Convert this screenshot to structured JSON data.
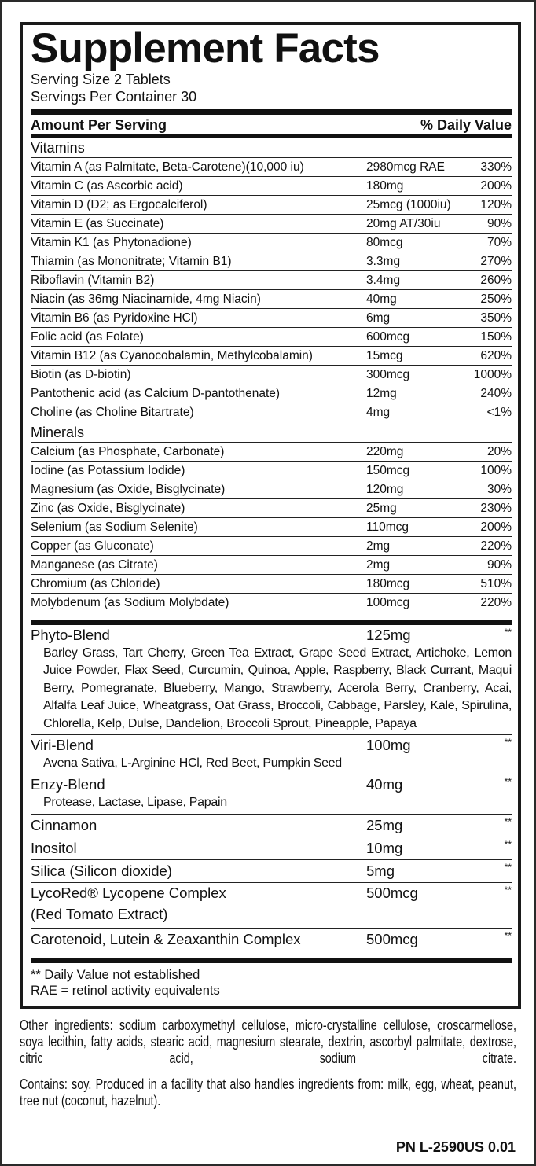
{
  "title": "Supplement Facts",
  "serving_size": "Serving Size 2 Tablets",
  "servings_per_container": "Servings Per Container 30",
  "header": {
    "amount": "Amount Per Serving",
    "dv": "% Daily Value"
  },
  "vitamins": {
    "label": "Vitamins",
    "rows": [
      {
        "name": "Vitamin A (as Palmitate, Beta-Carotene)(10,000 iu)",
        "amount": "2980mcg RAE",
        "dv": "330%"
      },
      {
        "name": "Vitamin C (as Ascorbic acid)",
        "amount": "180mg",
        "dv": "200%"
      },
      {
        "name": "Vitamin D (D2; as Ergocalciferol)",
        "amount": "25mcg (1000iu)",
        "dv": "120%"
      },
      {
        "name": "Vitamin E (as Succinate)",
        "amount": "20mg AT/30iu",
        "dv": "90%"
      },
      {
        "name": "Vitamin K1 (as Phytonadione)",
        "amount": "80mcg",
        "dv": "70%"
      },
      {
        "name": "Thiamin (as Mononitrate; Vitamin B1)",
        "amount": "3.3mg",
        "dv": "270%"
      },
      {
        "name": "Riboflavin (Vitamin B2)",
        "amount": "3.4mg",
        "dv": "260%"
      },
      {
        "name": "Niacin (as 36mg Niacinamide, 4mg Niacin)",
        "amount": "40mg",
        "dv": "250%"
      },
      {
        "name": "Vitamin B6 (as Pyridoxine HCl)",
        "amount": "6mg",
        "dv": "350%"
      },
      {
        "name": "Folic acid (as Folate)",
        "amount": "600mcg",
        "dv": "150%"
      },
      {
        "name": "Vitamin B12 (as Cyanocobalamin, Methylcobalamin)",
        "amount": "15mcg",
        "dv": "620%"
      },
      {
        "name": "Biotin (as D-biotin)",
        "amount": "300mcg",
        "dv": "1000%"
      },
      {
        "name": "Pantothenic acid (as Calcium D-pantothenate)",
        "amount": "12mg",
        "dv": "240%"
      },
      {
        "name": "Choline (as Choline Bitartrate)",
        "amount": "4mg",
        "dv": "<1%"
      }
    ]
  },
  "minerals": {
    "label": "Minerals",
    "rows": [
      {
        "name": "Calcium (as Phosphate, Carbonate)",
        "amount": "220mg",
        "dv": "20%"
      },
      {
        "name": "Iodine (as Potassium Iodide)",
        "amount": "150mcg",
        "dv": "100%"
      },
      {
        "name": "Magnesium (as Oxide, Bisglycinate)",
        "amount": "120mg",
        "dv": "30%"
      },
      {
        "name": "Zinc (as Oxide, Bisglycinate)",
        "amount": "25mg",
        "dv": "230%"
      },
      {
        "name": "Selenium (as Sodium Selenite)",
        "amount": "110mcg",
        "dv": "200%"
      },
      {
        "name": "Copper (as Gluconate)",
        "amount": "2mg",
        "dv": "220%"
      },
      {
        "name": "Manganese (as Citrate)",
        "amount": "2mg",
        "dv": "90%"
      },
      {
        "name": "Chromium (as Chloride)",
        "amount": "180mcg",
        "dv": "510%"
      },
      {
        "name": "Molybdenum (as Sodium Molybdate)",
        "amount": "100mcg",
        "dv": "220%"
      }
    ]
  },
  "blends": [
    {
      "name": "Phyto-Blend",
      "amount": "125mg",
      "dv": "**",
      "sub": "Barley Grass, Tart Cherry, Green Tea Extract, Grape Seed Extract, Artichoke, Lemon Juice Powder, Flax Seed, Curcumin, Quinoa, Apple, Raspberry, Black Currant, Maqui Berry, Pomegranate, Blueberry, Mango, Strawberry, Acerola Berry, Cranberry, Acai, Alfalfa Leaf Juice, Wheatgrass, Oat Grass, Broccoli, Cabbage, Parsley, Kale, Spirulina, Chlorella, Kelp, Dulse, Dandelion, Broccoli Sprout, Pineapple, Papaya"
    },
    {
      "name": "Viri-Blend",
      "amount": "100mg",
      "dv": "**",
      "sub": "Avena Sativa, L-Arginine HCl, Red Beet, Pumpkin Seed"
    },
    {
      "name": "Enzy-Blend",
      "amount": "40mg",
      "dv": "**",
      "sub": "Protease, Lactase, Lipase, Papain"
    },
    {
      "name": "Cinnamon",
      "amount": "25mg",
      "dv": "**"
    },
    {
      "name": "Inositol",
      "amount": "10mg",
      "dv": "**"
    },
    {
      "name": "Silica (Silicon dioxide)",
      "amount": "5mg",
      "dv": "**"
    },
    {
      "name": "LycoRed® Lycopene Complex",
      "amount": "500mcg",
      "dv": "**",
      "sub2": "(Red Tomato Extract)"
    },
    {
      "name": "Carotenoid, Lutein & Zeaxanthin Complex",
      "amount": "500mcg",
      "dv": "**"
    }
  ],
  "footnotes": [
    "** Daily Value not established",
    "RAE = retinol activity equivalents"
  ],
  "other_ingredients": "Other ingredients: sodium carboxymethyl cellulose, micro-crystalline cellulose, croscarmellose, soya lecithin, fatty acids, stearic acid, magnesium stearate, dextrin, ascorbyl palmitate, dextrose, citric acid, sodium citrate.",
  "contains": "Contains: soy. Produced in a facility that also handles ingredients from: milk, egg, wheat, peanut, tree nut (coconut, hazelnut).",
  "part_number": "PN L-2590US 0.01"
}
